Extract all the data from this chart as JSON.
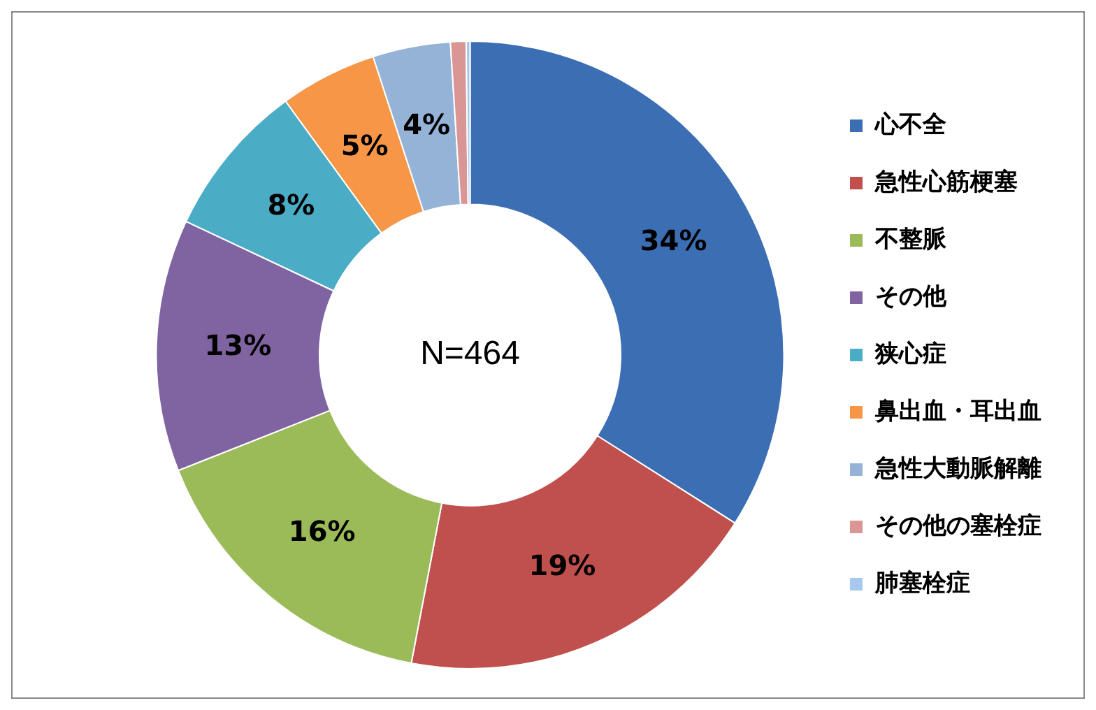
{
  "chart_data": {
    "type": "donut",
    "categories": [
      "心不全",
      "急性心筋梗塞",
      "不整脈",
      "その他",
      "狭心症",
      "鼻出血・耳出血",
      "急性大動脈解離",
      "その他の塞栓症",
      "肺塞栓症"
    ],
    "values": [
      34,
      19,
      16,
      13,
      8,
      5,
      4,
      0.8,
      0.2
    ],
    "colors": [
      "#3c6eb4",
      "#c0504d",
      "#9bbb59",
      "#8064a2",
      "#4bacc6",
      "#f79646",
      "#95b3d7",
      "#d99694",
      "#a6c8ee"
    ],
    "value_labels": [
      "34%",
      "19%",
      "16%",
      "13%",
      "8%",
      "5%",
      "4%",
      null,
      null
    ],
    "annotations": [
      "N=464"
    ],
    "legend": "right"
  }
}
